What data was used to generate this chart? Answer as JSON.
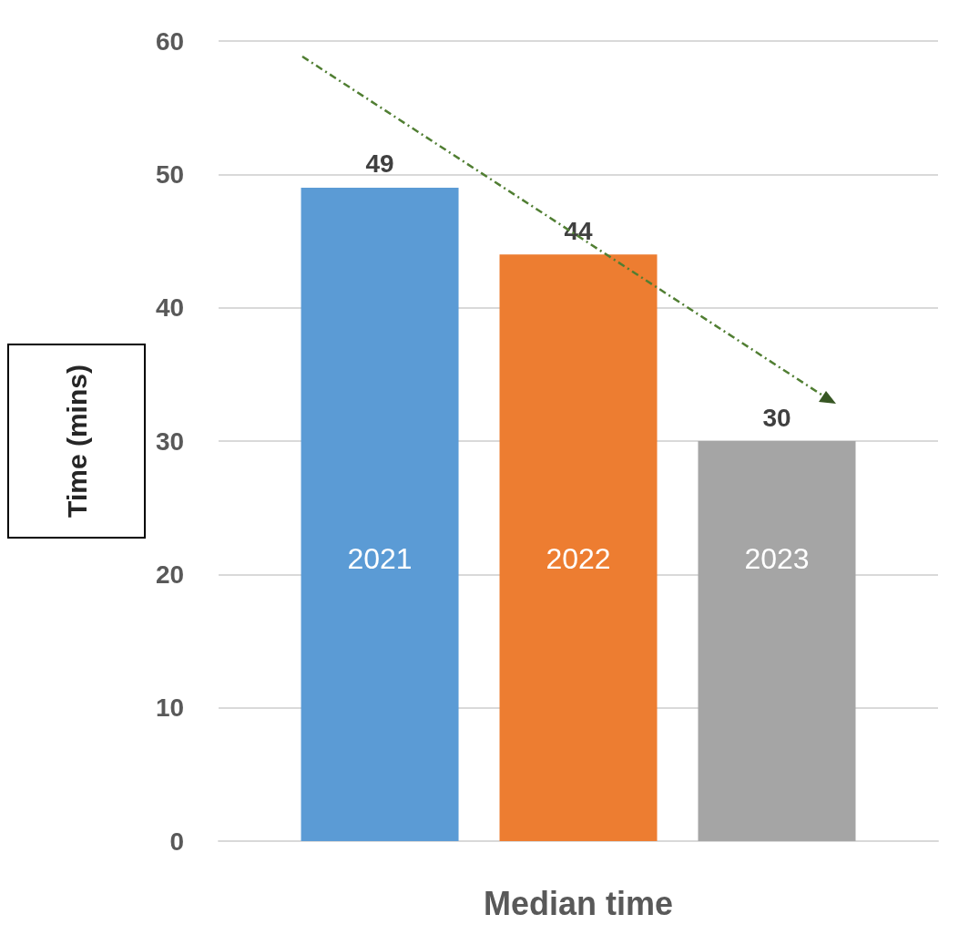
{
  "chart_data": {
    "type": "bar",
    "categories": [
      "Median time"
    ],
    "series": [
      {
        "name": "2021",
        "color": "#5b9bd5",
        "values": [
          49
        ]
      },
      {
        "name": "2022",
        "color": "#ed7d31",
        "values": [
          44
        ]
      },
      {
        "name": "2023",
        "color": "#a5a5a5",
        "values": [
          30
        ]
      }
    ],
    "ylabel": "Time (mins)",
    "ylim": [
      0,
      60
    ],
    "yticks": [
      0,
      10,
      20,
      30,
      40,
      50,
      60
    ],
    "grid": "y",
    "data_labels": true
  }
}
